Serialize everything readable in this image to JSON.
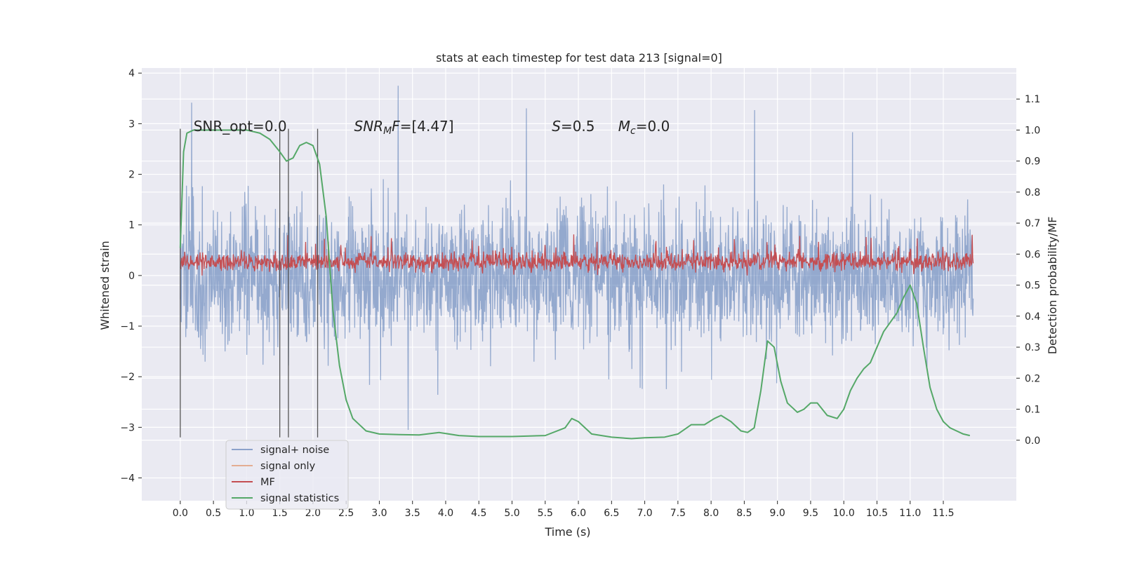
{
  "chart_data": {
    "type": "line",
    "title": "stats at each timestep for test data 213 [signal=0]",
    "xlabel": "Time (s)",
    "ylabel_left": "Whitened strain",
    "ylabel_right": "Detection probability/MF",
    "xlim": [
      -0.58,
      12.6
    ],
    "ylim_left": [
      -4.45,
      4.1
    ],
    "ylim_right": [
      -0.195,
      1.2
    ],
    "xticks": [
      "0.0",
      "0.5",
      "1.0",
      "1.5",
      "2.0",
      "2.5",
      "3.0",
      "3.5",
      "4.0",
      "4.5",
      "5.0",
      "5.5",
      "6.0",
      "6.5",
      "7.0",
      "7.5",
      "8.0",
      "8.5",
      "9.0",
      "9.5",
      "10.0",
      "10.5",
      "11.0",
      "11.5"
    ],
    "yticks_left": [
      "4",
      "3",
      "2",
      "1",
      "0",
      "−1",
      "−2",
      "−3",
      "−4"
    ],
    "yticks_right": [
      "1.1",
      "1.0",
      "0.9",
      "0.8",
      "0.7",
      "0.6",
      "0.5",
      "0.4",
      "0.3",
      "0.2",
      "0.1",
      "0.0"
    ],
    "grid": true,
    "legend_position": "lower-left",
    "series": [
      {
        "name": "signal+ noise",
        "color": "#4c72b0",
        "style": "dense noise, approx range -4 to 3.8"
      },
      {
        "name": "signal only",
        "color": "#dd8452",
        "values": []
      },
      {
        "name": "MF",
        "color": "#c44e52",
        "style": "dense noise, approx range 0 to 1.0"
      },
      {
        "name": "signal statistics",
        "color": "#55a868",
        "x": [
          0.0,
          0.05,
          0.1,
          0.2,
          0.3,
          0.5,
          0.8,
          1.0,
          1.2,
          1.35,
          1.5,
          1.6,
          1.7,
          1.8,
          1.9,
          2.0,
          2.1,
          2.2,
          2.3,
          2.4,
          2.5,
          2.6,
          2.8,
          3.0,
          3.3,
          3.6,
          3.9,
          4.2,
          4.5,
          5.0,
          5.5,
          5.8,
          5.9,
          6.0,
          6.2,
          6.5,
          6.8,
          7.0,
          7.3,
          7.5,
          7.7,
          7.9,
          8.05,
          8.15,
          8.3,
          8.45,
          8.55,
          8.65,
          8.75,
          8.85,
          8.95,
          9.05,
          9.15,
          9.3,
          9.4,
          9.5,
          9.6,
          9.75,
          9.9,
          10.0,
          10.1,
          10.2,
          10.3,
          10.4,
          10.5,
          10.6,
          10.7,
          10.8,
          10.9,
          11.0,
          11.1,
          11.2,
          11.3,
          11.4,
          11.5,
          11.6,
          11.7,
          11.8,
          11.9
        ],
        "values": [
          0.62,
          0.93,
          0.99,
          1.0,
          1.0,
          1.0,
          1.0,
          1.0,
          0.99,
          0.97,
          0.93,
          0.9,
          0.91,
          0.95,
          0.96,
          0.95,
          0.89,
          0.72,
          0.42,
          0.24,
          0.13,
          0.07,
          0.03,
          0.02,
          0.018,
          0.017,
          0.025,
          0.015,
          0.012,
          0.012,
          0.015,
          0.04,
          0.07,
          0.06,
          0.02,
          0.01,
          0.005,
          0.008,
          0.01,
          0.02,
          0.05,
          0.05,
          0.07,
          0.08,
          0.06,
          0.03,
          0.025,
          0.04,
          0.16,
          0.32,
          0.3,
          0.19,
          0.12,
          0.09,
          0.1,
          0.12,
          0.12,
          0.08,
          0.07,
          0.1,
          0.16,
          0.2,
          0.23,
          0.25,
          0.3,
          0.35,
          0.38,
          0.41,
          0.46,
          0.5,
          0.44,
          0.3,
          0.17,
          0.1,
          0.06,
          0.04,
          0.03,
          0.02,
          0.015
        ]
      }
    ],
    "vlines": [
      0.0,
      1.5,
      1.63,
      2.07
    ],
    "vline_range": [
      -3.2,
      2.9
    ],
    "annotations": [
      {
        "text": "SNR_opt=0.0",
        "x": 0.2,
        "y": 2.85
      },
      {
        "text": "SNRMF=[4.47]",
        "x": 2.62,
        "y": 2.85
      },
      {
        "text": "S=0.5",
        "x": 5.6,
        "y": 2.85
      },
      {
        "text": "Mc=0.0",
        "x": 6.6,
        "y": 2.85
      }
    ]
  }
}
